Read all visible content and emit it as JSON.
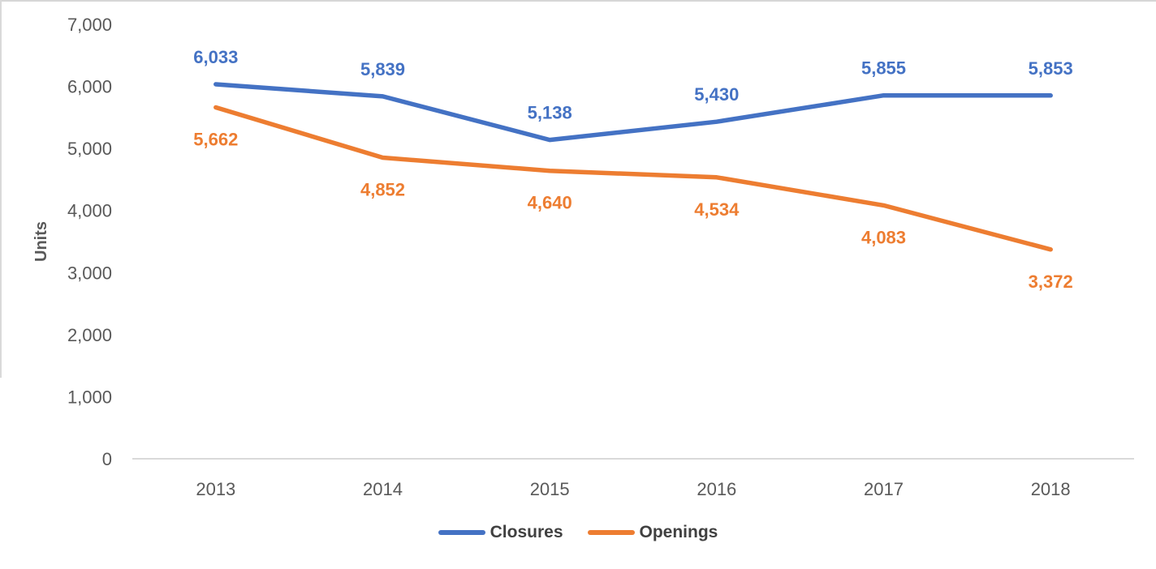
{
  "chart_data": {
    "type": "line",
    "categories": [
      "2013",
      "2014",
      "2015",
      "2016",
      "2017",
      "2018"
    ],
    "series": [
      {
        "name": "Closures",
        "color": "#4472C4",
        "values": [
          6033,
          5839,
          5138,
          5430,
          5855,
          5853
        ],
        "data_labels": [
          "6,033",
          "5,839",
          "5,138",
          "5,430",
          "5,855",
          "5,853"
        ],
        "label_position": "above"
      },
      {
        "name": "Openings",
        "color": "#ED7D31",
        "values": [
          5662,
          4852,
          4640,
          4534,
          4083,
          3372
        ],
        "data_labels": [
          "5,662",
          "4,852",
          "4,640",
          "4,534",
          "4,083",
          "3,372"
        ],
        "label_position": "below"
      }
    ],
    "title": "",
    "xlabel": "",
    "ylabel": "Units",
    "ylim": [
      0,
      7000
    ],
    "ytick_step": 1000,
    "ytick_labels": [
      "7,000",
      "6,000",
      "5,000",
      "4,000",
      "3,000",
      "2,000",
      "1,000",
      "0"
    ],
    "grid": false,
    "markers": false,
    "legend_position": "bottom"
  },
  "colors": {
    "axis_tick_text": "#595959",
    "axis_title_text": "#595959",
    "legend_text": "#404040",
    "axis_line": "#d9d9d9",
    "frame_border": "#d6d6d6",
    "background": "#ffffff",
    "series_closures": "#4472C4",
    "series_openings": "#ED7D31"
  }
}
